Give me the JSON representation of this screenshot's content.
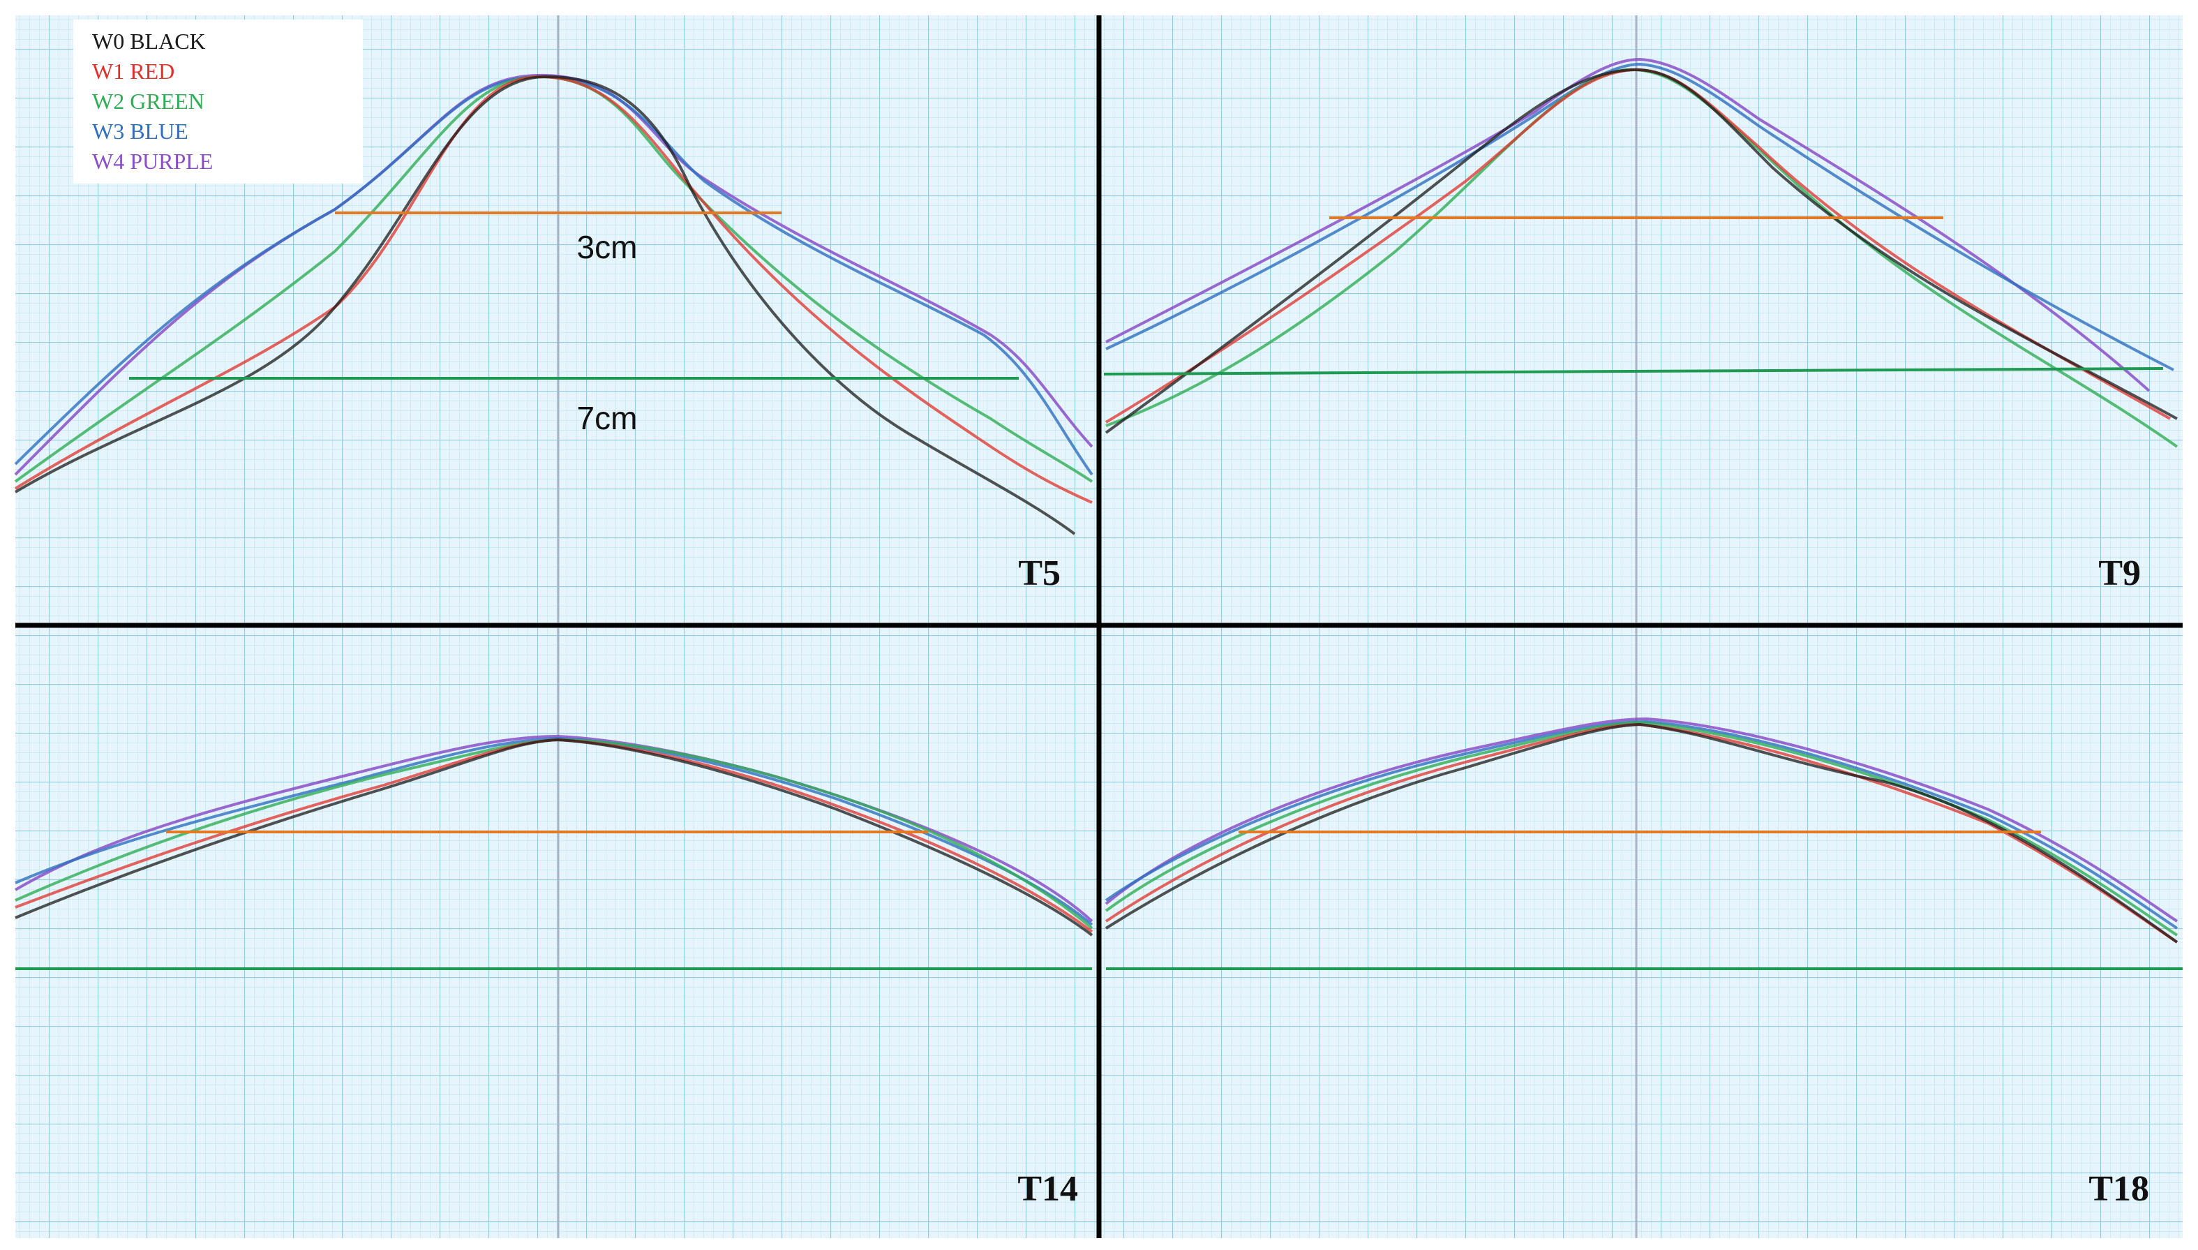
{
  "legend": {
    "items": [
      {
        "label": "W0 BLACK",
        "color": "#1a1a1a"
      },
      {
        "label": "W1 RED",
        "color": "#e0302a"
      },
      {
        "label": "W2 GREEN",
        "color": "#2fae55"
      },
      {
        "label": "W3 BLUE",
        "color": "#2e6fc0"
      },
      {
        "label": "W4 PURPLE",
        "color": "#8a4fc8"
      }
    ]
  },
  "panels": [
    {
      "label": "T5",
      "measurements": [
        "3cm",
        "7cm"
      ]
    },
    {
      "label": "T9",
      "measurements": []
    },
    {
      "label": "T14",
      "measurements": []
    },
    {
      "label": "T18",
      "measurements": []
    }
  ],
  "colors": {
    "grid_background": "#e6f5fb",
    "grid_minor": "#bfe1ee",
    "grid_major": "#8fc8df",
    "center_axis": "#9aa9c9",
    "orange_line": "#e07a26",
    "green_line": "#1f9a52",
    "divider": "#000000"
  }
}
